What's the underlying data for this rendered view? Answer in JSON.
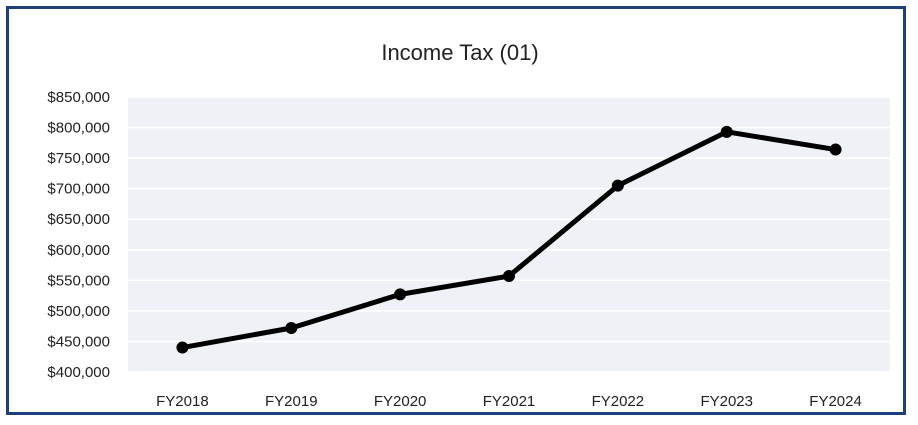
{
  "colors": {
    "border": "#1f3f7a",
    "plot_background": "#eef2f7",
    "gridline": "#ffffff",
    "line": "#000000"
  },
  "chart_data": {
    "type": "line",
    "title": "Income Tax (01)",
    "xlabel": "",
    "ylabel": "",
    "categories": [
      "FY2018",
      "FY2019",
      "FY2020",
      "FY2021",
      "FY2022",
      "FY2023",
      "FY2024"
    ],
    "series": [
      {
        "values": [
          440000,
          472000,
          527000,
          557000,
          705000,
          793000,
          764000
        ]
      }
    ],
    "ylim": [
      400000,
      850000
    ],
    "yticks": [
      400000,
      450000,
      500000,
      550000,
      600000,
      650000,
      700000,
      750000,
      800000,
      850000
    ],
    "ytick_labels": [
      "$400,000",
      "$450,000",
      "$500,000",
      "$550,000",
      "$600,000",
      "$650,000",
      "$700,000",
      "$750,000",
      "$800,000",
      "$850,000"
    ],
    "grid": true,
    "legend": "none",
    "markers": true
  }
}
